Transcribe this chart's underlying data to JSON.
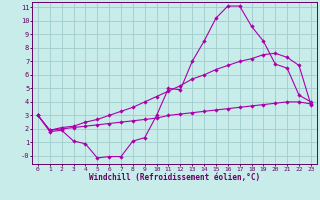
{
  "xlabel": "Windchill (Refroidissement éolien,°C)",
  "bg_color": "#c8ecea",
  "grid_color": "#a0cccc",
  "line_color": "#aa00aa",
  "spine_color": "#660066",
  "xlim": [
    -0.5,
    23.5
  ],
  "ylim": [
    -0.6,
    11.4
  ],
  "xticks": [
    0,
    1,
    2,
    3,
    4,
    5,
    6,
    7,
    8,
    9,
    10,
    11,
    12,
    13,
    14,
    15,
    16,
    17,
    18,
    19,
    20,
    21,
    22,
    23
  ],
  "yticks": [
    0,
    1,
    2,
    3,
    4,
    5,
    6,
    7,
    8,
    9,
    10,
    11
  ],
  "ytick_labels": [
    "-0",
    "1",
    "2",
    "3",
    "4",
    "5",
    "6",
    "7",
    "8",
    "9",
    "10",
    "11"
  ],
  "curve1_x": [
    0,
    1,
    2,
    3,
    4,
    5,
    6,
    7,
    8,
    9,
    10,
    11,
    12,
    13,
    14,
    15,
    16,
    17,
    18,
    19,
    20,
    21,
    22,
    23
  ],
  "curve1_y": [
    3.0,
    1.8,
    1.9,
    1.1,
    0.9,
    -0.15,
    -0.05,
    -0.05,
    1.1,
    1.35,
    3.0,
    5.0,
    4.9,
    7.0,
    8.5,
    10.2,
    11.1,
    11.1,
    9.6,
    8.5,
    6.8,
    6.5,
    4.5,
    4.0
  ],
  "curve2_x": [
    0,
    1,
    2,
    3,
    4,
    5,
    6,
    7,
    8,
    9,
    10,
    11,
    12,
    13,
    14,
    15,
    16,
    17,
    18,
    19,
    20,
    21,
    22,
    23
  ],
  "curve2_y": [
    3.0,
    1.9,
    2.1,
    2.2,
    2.5,
    2.7,
    3.0,
    3.3,
    3.6,
    4.0,
    4.4,
    4.8,
    5.2,
    5.7,
    6.0,
    6.4,
    6.7,
    7.0,
    7.2,
    7.5,
    7.6,
    7.3,
    6.7,
    3.8
  ],
  "curve3_x": [
    0,
    1,
    2,
    3,
    4,
    5,
    6,
    7,
    8,
    9,
    10,
    11,
    12,
    13,
    14,
    15,
    16,
    17,
    18,
    19,
    20,
    21,
    22,
    23
  ],
  "curve3_y": [
    3.0,
    1.9,
    2.0,
    2.1,
    2.2,
    2.3,
    2.4,
    2.5,
    2.6,
    2.7,
    2.8,
    3.0,
    3.1,
    3.2,
    3.3,
    3.4,
    3.5,
    3.6,
    3.7,
    3.8,
    3.9,
    4.0,
    4.0,
    3.85
  ]
}
